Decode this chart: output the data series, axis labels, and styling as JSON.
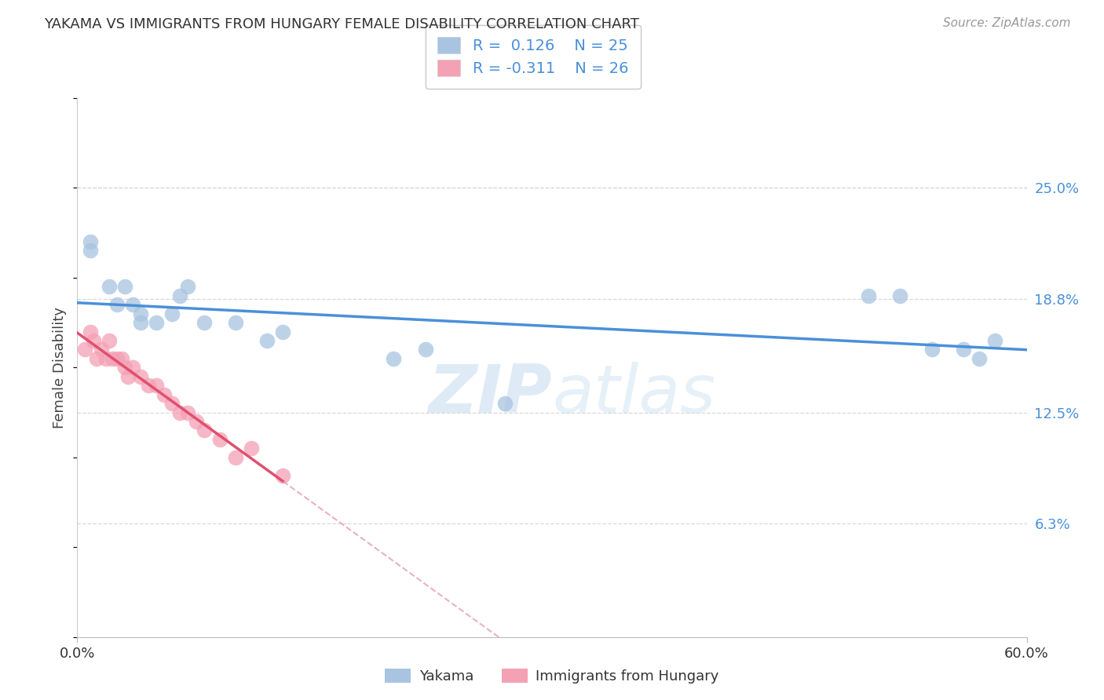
{
  "title": "YAKAMA VS IMMIGRANTS FROM HUNGARY FEMALE DISABILITY CORRELATION CHART",
  "source": "Source: ZipAtlas.com",
  "ylabel": "Female Disability",
  "watermark_zip": "ZIP",
  "watermark_atlas": "atlas",
  "xlim": [
    0.0,
    0.6
  ],
  "ylim": [
    0.0,
    0.3
  ],
  "ytick_values": [
    0.063,
    0.125,
    0.188,
    0.25
  ],
  "ytick_labels": [
    "6.3%",
    "12.5%",
    "18.8%",
    "25.0%"
  ],
  "xtick_values": [
    0.0,
    0.6
  ],
  "xtick_labels": [
    "0.0%",
    "60.0%"
  ],
  "legend_r1": "R =  0.126",
  "legend_n1": "N = 25",
  "legend_r2": "R = -0.311",
  "legend_n2": "N = 26",
  "series1_label": "Yakama",
  "series2_label": "Immigrants from Hungary",
  "color_blue": "#a8c4e0",
  "color_pink": "#f4a0b5",
  "line_blue": "#4a90d9",
  "line_pink": "#e05070",
  "line_dashed_color": "#e090a8",
  "background_color": "#ffffff",
  "grid_color": "#d8d8d8",
  "yakama_x": [
    0.008,
    0.008,
    0.02,
    0.025,
    0.03,
    0.035,
    0.04,
    0.04,
    0.05,
    0.06,
    0.065,
    0.07,
    0.08,
    0.1,
    0.12,
    0.13,
    0.2,
    0.22,
    0.27,
    0.5,
    0.52,
    0.54,
    0.56,
    0.57,
    0.58
  ],
  "yakama_y": [
    0.22,
    0.215,
    0.195,
    0.185,
    0.195,
    0.185,
    0.175,
    0.18,
    0.175,
    0.18,
    0.19,
    0.195,
    0.175,
    0.175,
    0.165,
    0.17,
    0.155,
    0.16,
    0.13,
    0.19,
    0.19,
    0.16,
    0.16,
    0.155,
    0.165
  ],
  "hungary_x": [
    0.005,
    0.008,
    0.01,
    0.012,
    0.015,
    0.018,
    0.02,
    0.022,
    0.025,
    0.028,
    0.03,
    0.032,
    0.035,
    0.04,
    0.045,
    0.05,
    0.055,
    0.06,
    0.065,
    0.07,
    0.075,
    0.08,
    0.09,
    0.1,
    0.11,
    0.13
  ],
  "hungary_y": [
    0.16,
    0.17,
    0.165,
    0.155,
    0.16,
    0.155,
    0.165,
    0.155,
    0.155,
    0.155,
    0.15,
    0.145,
    0.15,
    0.145,
    0.14,
    0.14,
    0.135,
    0.13,
    0.125,
    0.125,
    0.12,
    0.115,
    0.11,
    0.1,
    0.105,
    0.09
  ],
  "pink_line_solid_end": 0.13,
  "pink_line_dashed_end": 0.6
}
